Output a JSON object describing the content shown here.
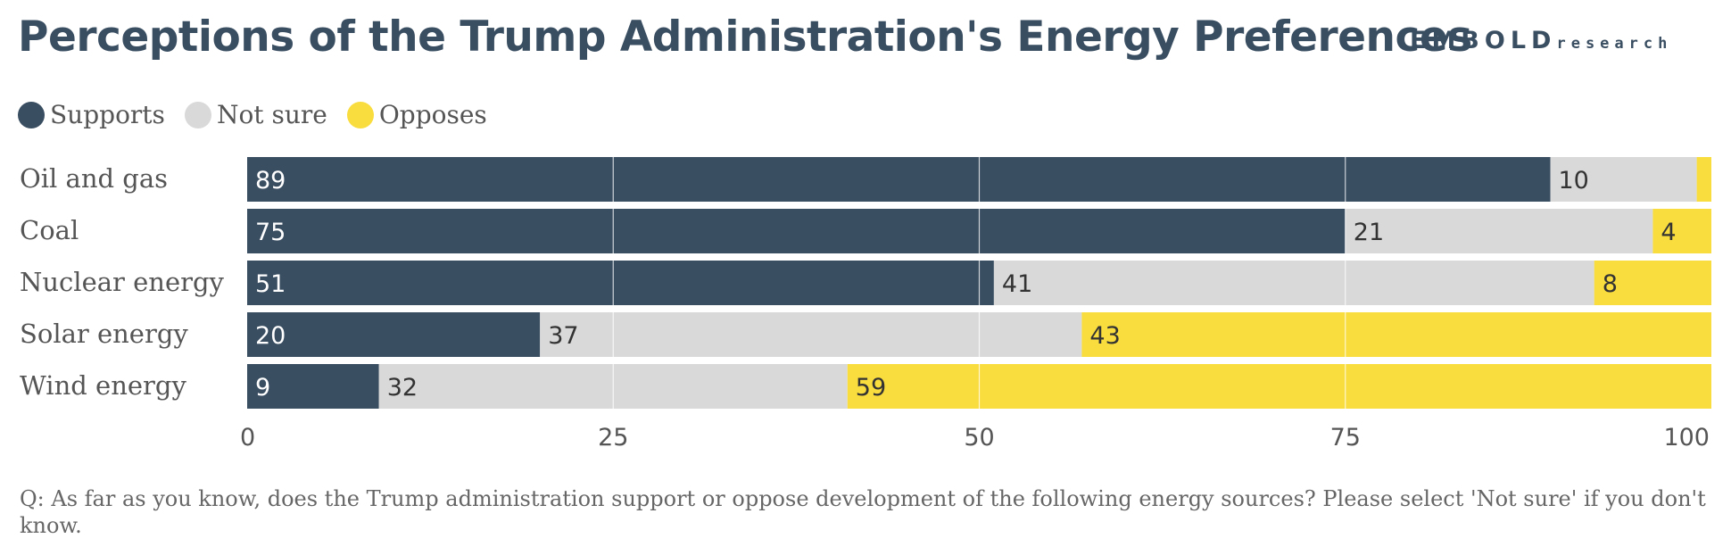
{
  "header": {
    "title": "Perceptions of the Trump Administration's Energy Preferences",
    "brand_primary": "EMBOLD",
    "brand_secondary": "research"
  },
  "footnote": "Q: As far as you know, does the Trump administration support or oppose development of the following energy sources? Please select 'Not sure' if you don't know.",
  "colors": {
    "supports": "#3a4e62",
    "not_sure": "#d9d9d9",
    "opposes": "#f9dc3e",
    "gridline": "#ffffff",
    "axis_text": "#555555"
  },
  "chart_data": {
    "type": "bar",
    "orientation": "horizontal",
    "stacked": true,
    "title": "Perceptions of the Trump Administration's Energy Preferences",
    "categories": [
      "Oil and gas",
      "Coal",
      "Nuclear energy",
      "Solar energy",
      "Wind energy"
    ],
    "series": [
      {
        "name": "Supports",
        "values": [
          89,
          75,
          51,
          20,
          9
        ],
        "labels": [
          "89",
          "75",
          "51",
          "20",
          "9"
        ]
      },
      {
        "name": "Not sure",
        "values": [
          10,
          21,
          41,
          37,
          32
        ],
        "labels": [
          "10",
          "21",
          "41",
          "37",
          "32"
        ]
      },
      {
        "name": "Opposes",
        "values": [
          1,
          4,
          8,
          43,
          59
        ],
        "labels": [
          "",
          "4",
          "8",
          "43",
          "59"
        ]
      }
    ],
    "xlim": [
      0,
      100
    ],
    "xticks": [
      0,
      25,
      50,
      75,
      100
    ],
    "xtick_labels": [
      "0",
      "25",
      "50",
      "75",
      "100"
    ],
    "grid": true,
    "legend_position": "top-left"
  }
}
